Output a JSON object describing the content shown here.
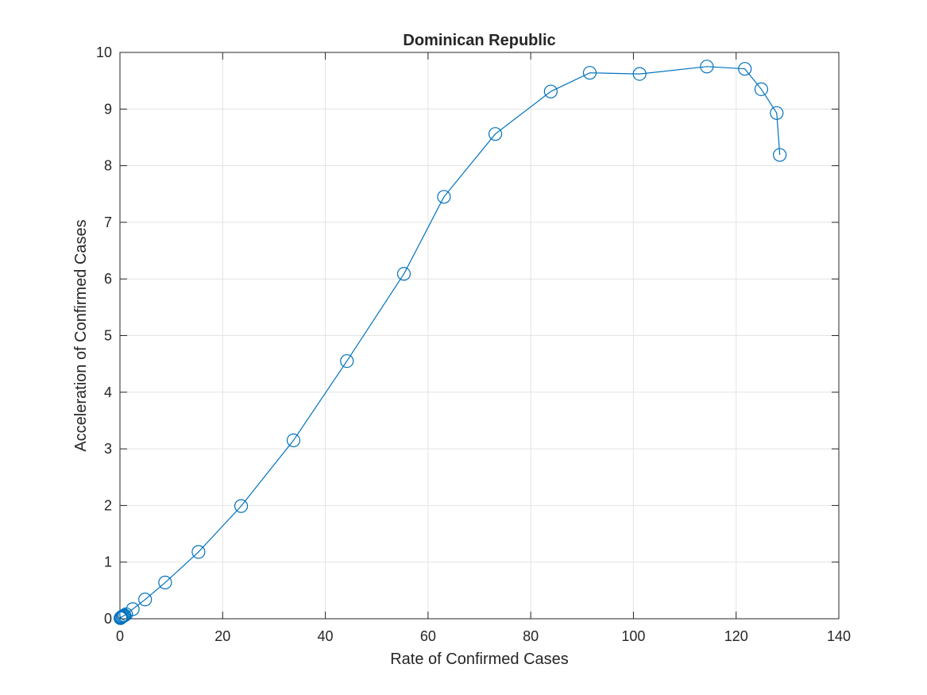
{
  "chart_data": {
    "type": "line",
    "title": "Dominican Republic",
    "xlabel": "Rate of Confirmed Cases",
    "ylabel": "Acceleration of Confirmed Cases",
    "xlim": [
      0,
      140
    ],
    "ylim": [
      0,
      10
    ],
    "xticks": [
      0,
      20,
      40,
      60,
      80,
      100,
      120,
      140
    ],
    "yticks": [
      0,
      1,
      2,
      3,
      4,
      5,
      6,
      7,
      8,
      9,
      10
    ],
    "grid": true,
    "marker": "circle",
    "line_color": "#0072bd",
    "series": [
      {
        "x": [
          0.1,
          0.2,
          0.3,
          0.5,
          0.7,
          0.9,
          1.2,
          2.5,
          4.9,
          8.8,
          15.3,
          23.6,
          33.8,
          44.2,
          55.3,
          63.1,
          73.1,
          83.9,
          91.5,
          101.2,
          114.3,
          121.7,
          124.9,
          127.9,
          128.5
        ],
        "y": [
          0.01,
          0.02,
          0.03,
          0.04,
          0.05,
          0.06,
          0.08,
          0.17,
          0.34,
          0.64,
          1.18,
          1.99,
          3.15,
          4.55,
          6.09,
          7.45,
          8.56,
          9.31,
          9.64,
          9.62,
          9.75,
          9.71,
          9.35,
          8.93,
          8.19
        ]
      }
    ]
  }
}
